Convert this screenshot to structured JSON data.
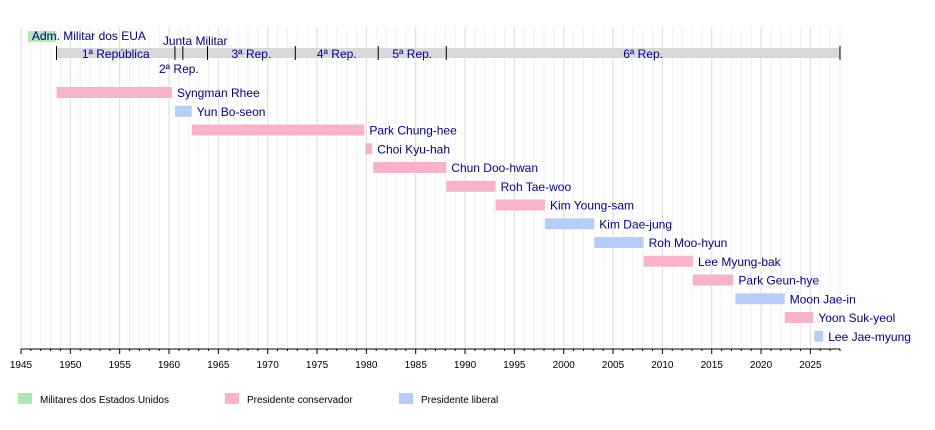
{
  "chart_data": {
    "type": "timeline",
    "title": "",
    "xlabel": "",
    "ylabel": "",
    "xlim": [
      1945,
      2028
    ],
    "grid": true,
    "legend_position": "bottom",
    "x_ticks": [
      "1945",
      "1950",
      "1955",
      "1960",
      "1965",
      "1970",
      "1975",
      "1980",
      "1985",
      "1990",
      "1995",
      "2000",
      "2005",
      "2010",
      "2015",
      "2020",
      "2025"
    ],
    "colors": {
      "military": "#b3e6b3",
      "conservative": "#f7b3c8",
      "liberal": "#b8cdf5",
      "republic_band": "#d9d9d9"
    },
    "legend": [
      {
        "label": "Militares dos Estados Unidos",
        "category": "military"
      },
      {
        "label": "Presidente conservador",
        "category": "conservative"
      },
      {
        "label": "Presidente liberal",
        "category": "liberal"
      }
    ],
    "eras": [
      {
        "label": "Adm. Militar dos EUA",
        "start": 1945.7,
        "end": 1948.6,
        "category": "military"
      },
      {
        "label": "1ª República",
        "start": 1948.6,
        "end": 1960.6,
        "category": "republic_band"
      },
      {
        "label": "2ª Rep.",
        "start": 1960.6,
        "end": 1961.4,
        "category": "republic_band"
      },
      {
        "label": "Junta Militar",
        "start": 1961.4,
        "end": 1963.9,
        "category": "republic_band"
      },
      {
        "label": "3ª Rep.",
        "start": 1963.9,
        "end": 1972.8,
        "category": "republic_band"
      },
      {
        "label": "4ª Rep.",
        "start": 1972.8,
        "end": 1981.2,
        "category": "republic_band"
      },
      {
        "label": "5ª Rep.",
        "start": 1981.2,
        "end": 1988.1,
        "category": "republic_band"
      },
      {
        "label": "6ª Rep.",
        "start": 1988.1,
        "end": 2028.0,
        "category": "republic_band"
      }
    ],
    "presidents": [
      {
        "name": "Syngman Rhee",
        "start": 1948.6,
        "end": 1960.3,
        "category": "conservative"
      },
      {
        "name": "Yun Bo-seon",
        "start": 1960.6,
        "end": 1962.3,
        "category": "liberal"
      },
      {
        "name": "Park Chung-hee",
        "start": 1962.3,
        "end": 1979.8,
        "category": "conservative"
      },
      {
        "name": "Choi Kyu-hah",
        "start": 1979.9,
        "end": 1980.6,
        "category": "conservative"
      },
      {
        "name": "Chun Doo-hwan",
        "start": 1980.7,
        "end": 1988.1,
        "category": "conservative"
      },
      {
        "name": "Roh Tae-woo",
        "start": 1988.1,
        "end": 1993.1,
        "category": "conservative"
      },
      {
        "name": "Kim Young-sam",
        "start": 1993.1,
        "end": 1998.1,
        "category": "conservative"
      },
      {
        "name": "Kim Dae-jung",
        "start": 1998.1,
        "end": 2003.1,
        "category": "liberal"
      },
      {
        "name": "Roh Moo-hyun",
        "start": 2003.1,
        "end": 2008.1,
        "category": "liberal"
      },
      {
        "name": "Lee Myung-bak",
        "start": 2008.1,
        "end": 2013.1,
        "category": "conservative"
      },
      {
        "name": "Park Geun-hye",
        "start": 2013.1,
        "end": 2017.2,
        "category": "conservative"
      },
      {
        "name": "Moon Jae-in",
        "start": 2017.4,
        "end": 2022.4,
        "category": "liberal"
      },
      {
        "name": "Yoon Suk-yeol",
        "start": 2022.4,
        "end": 2025.3,
        "category": "conservative"
      },
      {
        "name": "Lee Jae-myung",
        "start": 2025.4,
        "end": 2026.3,
        "category": "liberal"
      }
    ]
  }
}
